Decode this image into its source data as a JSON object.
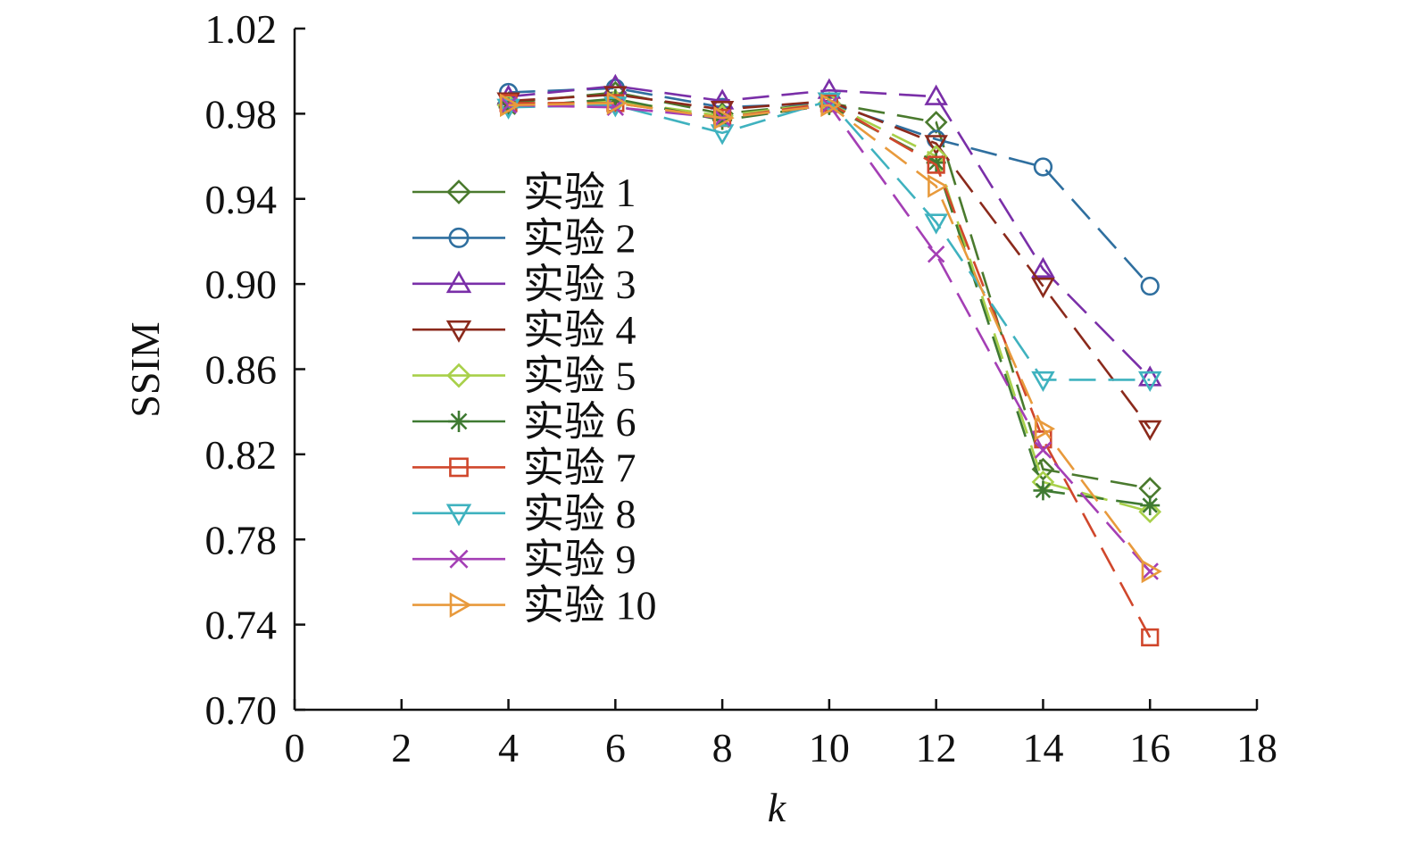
{
  "chart_data": {
    "type": "line",
    "xlabel": "k",
    "ylabel": "SSIM",
    "xlim": [
      0,
      18
    ],
    "ylim": [
      0.7,
      1.02
    ],
    "xticks": [
      "0",
      "2",
      "4",
      "6",
      "8",
      "10",
      "12",
      "14",
      "16",
      "18"
    ],
    "yticks": [
      "0.70",
      "0.74",
      "0.78",
      "0.82",
      "0.86",
      "0.90",
      "0.94",
      "0.98",
      "1.02"
    ],
    "grid": false,
    "legend_position": "center-left",
    "x": [
      4,
      6,
      8,
      10,
      12,
      14,
      16
    ],
    "series": [
      {
        "name": "实验 1",
        "color": "#4a7a2e",
        "marker": "diamond",
        "values": [
          0.985,
          0.99,
          0.98,
          0.985,
          0.976,
          0.813,
          0.804
        ]
      },
      {
        "name": "实验 2",
        "color": "#2f6f9f",
        "marker": "circle",
        "values": [
          0.99,
          0.992,
          0.983,
          0.985,
          0.968,
          0.955,
          0.899
        ]
      },
      {
        "name": "实验 3",
        "color": "#7a2fa8",
        "marker": "triangle-up",
        "values": [
          0.988,
          0.993,
          0.986,
          0.991,
          0.988,
          0.907,
          0.856
        ]
      },
      {
        "name": "实验 4",
        "color": "#8b2a1c",
        "marker": "triangle-down",
        "values": [
          0.986,
          0.989,
          0.982,
          0.986,
          0.966,
          0.899,
          0.832
        ]
      },
      {
        "name": "实验 5",
        "color": "#a8d04a",
        "marker": "diamond",
        "values": [
          0.984,
          0.986,
          0.979,
          0.985,
          0.96,
          0.807,
          0.793
        ]
      },
      {
        "name": "实验 6",
        "color": "#3f7a32",
        "marker": "star",
        "values": [
          0.983,
          0.987,
          0.977,
          0.984,
          0.957,
          0.803,
          0.796
        ]
      },
      {
        "name": "实验 7",
        "color": "#d0472c",
        "marker": "square",
        "values": [
          0.985,
          0.985,
          0.978,
          0.985,
          0.956,
          0.827,
          0.734
        ]
      },
      {
        "name": "实验 8",
        "color": "#3fb2bf",
        "marker": "triangle-down",
        "values": [
          0.983,
          0.984,
          0.971,
          0.986,
          0.929,
          0.855,
          0.855
        ]
      },
      {
        "name": "实验 9",
        "color": "#a43fb5",
        "marker": "x",
        "values": [
          0.984,
          0.983,
          0.978,
          0.984,
          0.914,
          0.822,
          0.765
        ]
      },
      {
        "name": "实验 10",
        "color": "#e89a3c",
        "marker": "triangle-right",
        "values": [
          0.984,
          0.985,
          0.978,
          0.984,
          0.946,
          0.832,
          0.765
        ]
      }
    ]
  }
}
